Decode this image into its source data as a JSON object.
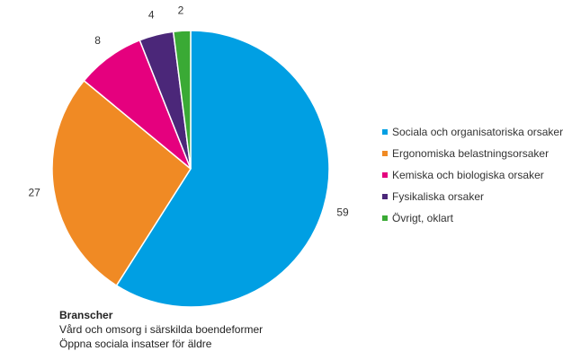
{
  "chart_data": {
    "type": "pie",
    "slices": [
      {
        "label": "Sociala och organisatoriska orsaker",
        "value": 59,
        "color": "#009fe3"
      },
      {
        "label": "Ergonomiska belastningsorsaker",
        "value": 27,
        "color": "#f08a24"
      },
      {
        "label": "Kemiska och biologiska orsaker",
        "value": 8,
        "color": "#e5007e"
      },
      {
        "label": "Fysikaliska orsaker",
        "value": 4,
        "color": "#4b2779"
      },
      {
        "label": "Övrigt, oklart",
        "value": 2,
        "color": "#3aaa35"
      }
    ],
    "legend_position": "right"
  },
  "caption": {
    "title": "Branscher",
    "lines": [
      "Vård och omsorg i särskilda boendeformer",
      "Öppna sociala insatser för äldre"
    ]
  }
}
